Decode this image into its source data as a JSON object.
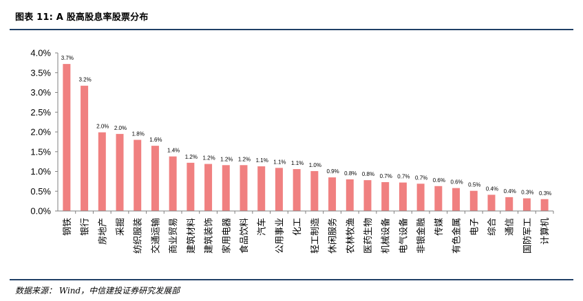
{
  "title": "图表 11: A 股高股息率股票分布",
  "source": "数据来源： Wind，中信建投证券研究发展部",
  "colors": {
    "bar": "#f08080",
    "rule": "#1f3f66",
    "axis": "#7f7f7f"
  },
  "chart_data": {
    "type": "bar",
    "title": "",
    "xlabel": "",
    "ylabel": "",
    "ylim": [
      0,
      4.0
    ],
    "yticks": [
      "0.0%",
      "0.5%",
      "1.0%",
      "1.5%",
      "2.0%",
      "2.5%",
      "3.0%",
      "3.5%",
      "4.0%"
    ],
    "grid": false,
    "legend": "none",
    "categories": [
      "钢铁",
      "银行",
      "房地产",
      "采掘",
      "纺织服装",
      "交通运输",
      "商业贸易",
      "建筑材料",
      "建筑装饰",
      "家用电器",
      "食品饮料",
      "汽车",
      "公用事业",
      "化工",
      "轻工制造",
      "休闲服务",
      "农林牧渔",
      "医药生物",
      "机械设备",
      "电气设备",
      "非银金融",
      "传媒",
      "有色金属",
      "电子",
      "综合",
      "通信",
      "国防军工",
      "计算机"
    ],
    "values": [
      3.72,
      3.17,
      1.99,
      1.95,
      1.8,
      1.65,
      1.38,
      1.22,
      1.19,
      1.16,
      1.16,
      1.13,
      1.09,
      1.06,
      1.01,
      0.85,
      0.8,
      0.78,
      0.73,
      0.72,
      0.69,
      0.63,
      0.58,
      0.51,
      0.41,
      0.35,
      0.32,
      0.3
    ],
    "data_labels": [
      "3.7%",
      "3.2%",
      "2.0%",
      "2.0%",
      "1.8%",
      "1.6%",
      "1.4%",
      "1.2%",
      "1.2%",
      "1.2%",
      "1.2%",
      "1.1%",
      "1.1%",
      "1.1%",
      "1.0%",
      "0.9%",
      "0.8%",
      "0.8%",
      "0.7%",
      "0.7%",
      "0.7%",
      "0.6%",
      "0.6%",
      "0.5%",
      "0.4%",
      "0.4%",
      "0.3%",
      "0.3%"
    ]
  }
}
